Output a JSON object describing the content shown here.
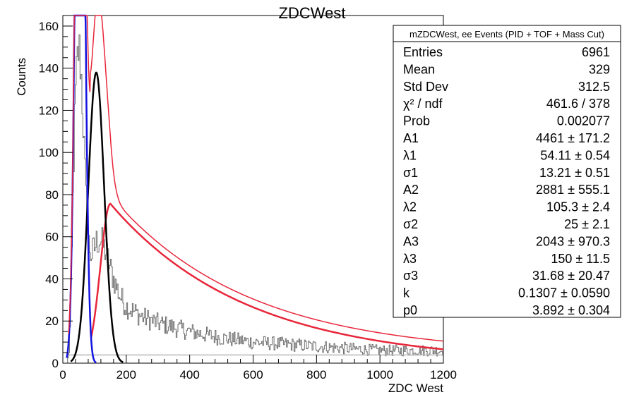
{
  "chart_data": {
    "type": "histogram",
    "title": "ZDCWest",
    "xlabel": "ZDC West",
    "ylabel": "Counts",
    "xlim": [
      0,
      1200
    ],
    "ylim": [
      0,
      165
    ],
    "xticks": [
      0,
      200,
      400,
      600,
      800,
      1000,
      1200
    ],
    "yticks": [
      0,
      20,
      40,
      60,
      80,
      100,
      120,
      140,
      160
    ],
    "grid": false,
    "stats_box": {
      "title": "mZDCWest, ee Events (PID + TOF + Mass Cut)",
      "placement": "top-right",
      "rows": [
        {
          "label": "Entries",
          "value": "6961"
        },
        {
          "label": "Mean",
          "value": "329"
        },
        {
          "label": "Std Dev",
          "value": "312.5"
        },
        {
          "label": "χ² / ndf",
          "value": "461.6 / 378"
        },
        {
          "label": "Prob",
          "value": "0.002077"
        },
        {
          "label": "A1",
          "value": "4461 ± 171.2"
        },
        {
          "label": "λ1",
          "value": "54.11 ± 0.54"
        },
        {
          "label": "σ1",
          "value": "13.21 ± 0.51"
        },
        {
          "label": "A2",
          "value": "2881 ± 555.1"
        },
        {
          "label": "λ2",
          "value": "105.3 ± 2.4"
        },
        {
          "label": "σ2",
          "value": "25 ± 2.1"
        },
        {
          "label": "A3",
          "value": "2043 ± 970.3"
        },
        {
          "label": "λ3",
          "value": "150 ± 11.5"
        },
        {
          "label": "σ3",
          "value": "31.68 ± 20.47"
        },
        {
          "label": "k",
          "value": "0.1307 ± 0.0590"
        },
        {
          "label": "p0",
          "value": "3.892 ± 0.304"
        }
      ]
    },
    "fit": {
      "bin_width": 3,
      "A1": 4461,
      "lambda1": 54.11,
      "sigma1": 13.21,
      "A2": 2881,
      "lambda2": 105.3,
      "sigma2": 25,
      "A3": 2043,
      "lambda3": 150,
      "sigma3": 31.68,
      "k": 0.1307,
      "p0": 3.892
    },
    "series": [
      {
        "name": "",
        "kind": "histogram",
        "color": "#6f6f6f"
      },
      {
        "name": "",
        "kind": "total-fit",
        "color": "#e8263a"
      },
      {
        "name": "",
        "kind": "component-1",
        "color": "#1414e0"
      },
      {
        "name": "",
        "kind": "component-2",
        "color": "#000000"
      },
      {
        "name": "",
        "kind": "component-3-tail",
        "color": "#e8263a"
      },
      {
        "name": "",
        "kind": "baseline",
        "color": "#b8b8b8"
      }
    ],
    "histogram_profile": [
      [
        0,
        0
      ],
      [
        15,
        0
      ],
      [
        21,
        8
      ],
      [
        27,
        40
      ],
      [
        33,
        90
      ],
      [
        39,
        122
      ],
      [
        45,
        142
      ],
      [
        51,
        150
      ],
      [
        54,
        146
      ],
      [
        57,
        140
      ],
      [
        63,
        120
      ],
      [
        69,
        95
      ],
      [
        75,
        72
      ],
      [
        81,
        58
      ],
      [
        90,
        51
      ],
      [
        99,
        54
      ],
      [
        108,
        58
      ],
      [
        117,
        59
      ],
      [
        126,
        56
      ],
      [
        138,
        52
      ],
      [
        150,
        45
      ],
      [
        165,
        38
      ],
      [
        180,
        32
      ],
      [
        200,
        27
      ],
      [
        250,
        22
      ],
      [
        300,
        19
      ],
      [
        400,
        15
      ],
      [
        500,
        12
      ],
      [
        600,
        10
      ],
      [
        700,
        9
      ],
      [
        800,
        8
      ],
      [
        900,
        7
      ],
      [
        1000,
        6
      ],
      [
        1100,
        6
      ],
      [
        1200,
        6
      ]
    ]
  }
}
